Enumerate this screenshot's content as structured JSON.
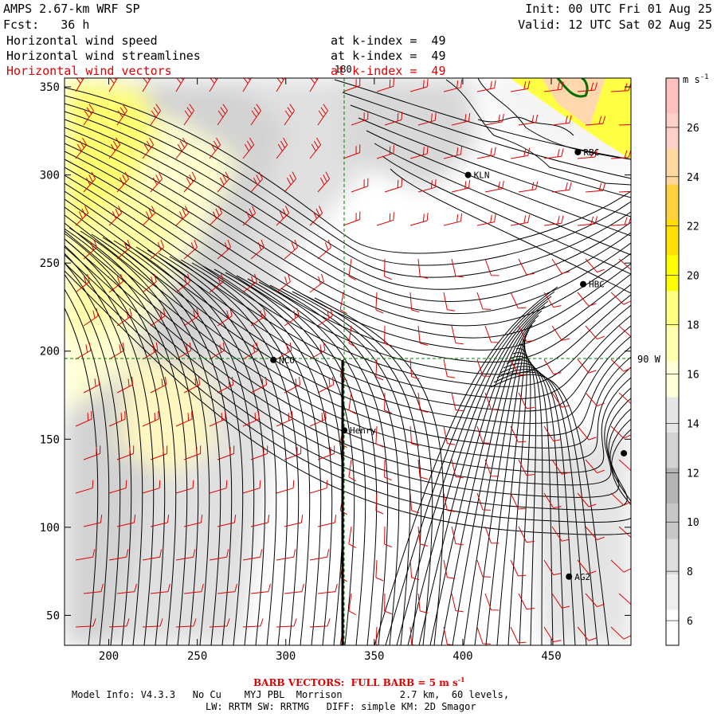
{
  "header": {
    "model_title": "AMPS 2.67-km WRF SP",
    "forecast": "Fcst:   36 h",
    "init": "Init: 00 UTC Fri 01 Aug 25",
    "valid": "Valid: 12 UTC Sat 02 Aug 25",
    "fields": [
      {
        "name": "Horizontal wind speed",
        "level": "at k-index =  49"
      },
      {
        "name": "Horizontal wind streamlines",
        "level": "at k-index =  49"
      },
      {
        "name": "Horizontal wind vectors",
        "level": "at k-index =  49"
      }
    ]
  },
  "colors": {
    "vectors": "#e00000",
    "grid_lines": "#008000",
    "scale_bins": [
      "#ffffff",
      "#eeeeee",
      "#dddddd",
      "#c8c8c8",
      "#b4b4b4",
      "#d2d2d2",
      "#e6e6e6",
      "#ffffd8",
      "#ffffb0",
      "#ffff80",
      "#ffff00",
      "#ffe000",
      "#ffd040",
      "#ffd8a0",
      "#ffd0c8",
      "#ffc0c0"
    ]
  },
  "map": {
    "x_ticks": [
      "200",
      "250",
      "300",
      "350",
      "400",
      "450"
    ],
    "y_ticks": [
      "350",
      "300",
      "250",
      "200",
      "150",
      "100",
      "50"
    ],
    "x_tick_values": [
      200,
      250,
      300,
      350,
      400,
      450
    ],
    "y_tick_values": [
      350,
      300,
      250,
      200,
      150,
      100,
      50
    ],
    "xlim": [
      175,
      495
    ],
    "ylim": [
      33,
      355
    ],
    "meridian_label": "180",
    "parallel_label": "90 W",
    "stations": [
      {
        "name": "RBC",
        "x": 465,
        "y": 313
      },
      {
        "name": "KLN",
        "x": 403,
        "y": 300
      },
      {
        "name": "HBC",
        "x": 468,
        "y": 238
      },
      {
        "name": "NCO",
        "x": 293,
        "y": 195
      },
      {
        "name": "Henry",
        "x": 333,
        "y": 155
      },
      {
        "name": "AG2",
        "x": 460,
        "y": 72
      },
      {
        "name": "",
        "x": 491,
        "y": 142
      }
    ]
  },
  "colorbar": {
    "unit": "m s",
    "unit_exp": "-1",
    "labels": [
      "26",
      "24",
      "22",
      "20",
      "18",
      "16",
      "14",
      "12",
      "10",
      "8",
      "6"
    ],
    "min": 5,
    "max": 28,
    "bin_step": 1
  },
  "footer": {
    "barb_note": "BARB VECTORS:  FULL BARB = 5 m s",
    "barb_exp": "-1",
    "model_info": "Model Info: V4.3.3   No Cu    MYJ PBL  Morrison          2.7 km,  60 levels,",
    "physics": "LW: RRTM SW: RRTMG   DIFF: simple KM: 2D Smagor"
  }
}
